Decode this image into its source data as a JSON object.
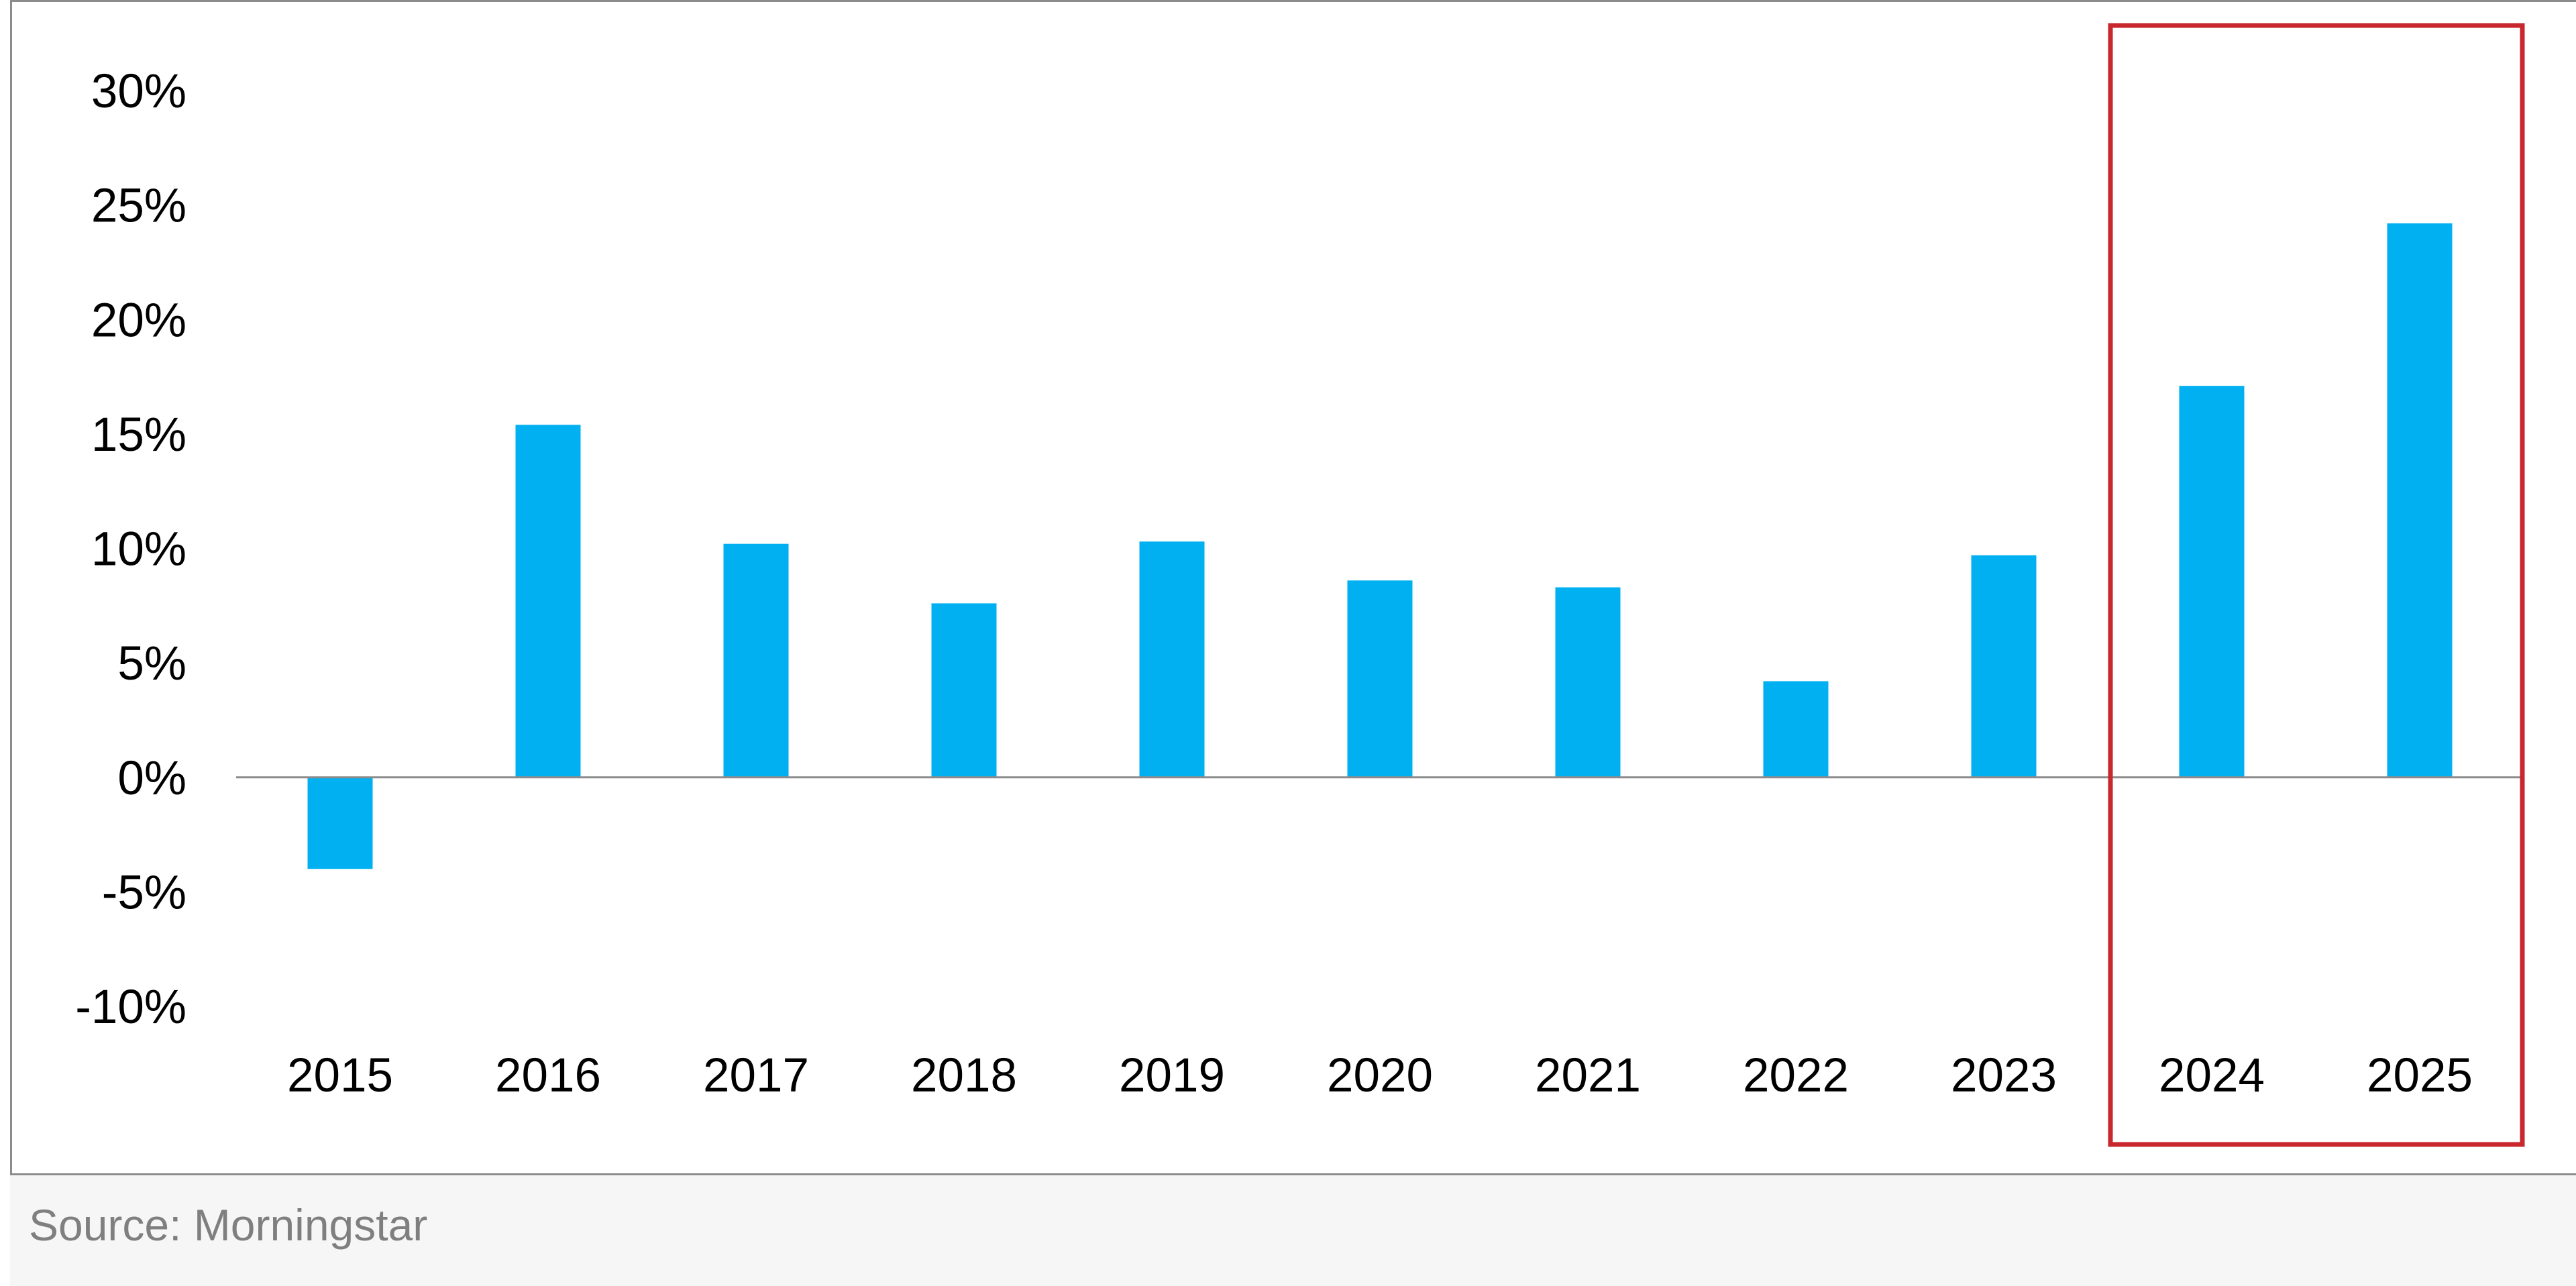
{
  "colors": {
    "bar": "#00b0f0",
    "highlight_box": "#c8272e",
    "axis_line": "#8c8c8c",
    "frame": "#8c8c8c",
    "source_text": "#7f7f7f"
  },
  "source": "Source: Morningstar",
  "chart_data": {
    "type": "bar",
    "title": "",
    "xlabel": "",
    "ylabel": "",
    "categories": [
      "2015",
      "2016",
      "2017",
      "2018",
      "2019",
      "2020",
      "2021",
      "2022",
      "2023",
      "2024",
      "2025"
    ],
    "values": [
      -4.0,
      15.4,
      10.2,
      7.6,
      10.3,
      8.6,
      8.3,
      4.2,
      9.7,
      17.1,
      24.2
    ],
    "ylim": [
      -10,
      30
    ],
    "yticks": [
      30,
      25,
      20,
      15,
      10,
      5,
      0,
      -5,
      -10
    ],
    "ytick_labels": [
      "30%",
      "25%",
      "20%",
      "15%",
      "10%",
      "5%",
      "0%",
      "-5%",
      "-10%"
    ],
    "grid": false,
    "legend": "none",
    "highlight_categories": [
      "2024",
      "2025"
    ]
  }
}
